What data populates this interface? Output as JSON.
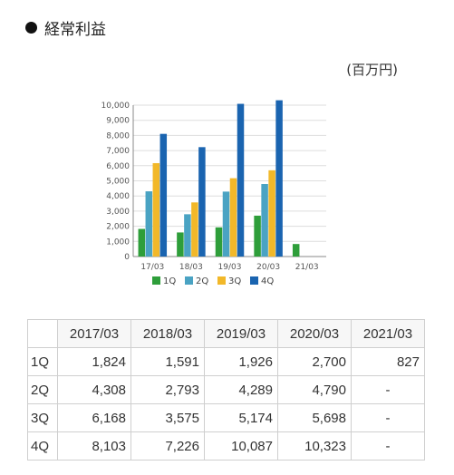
{
  "section": {
    "title": "経常利益"
  },
  "unit": "(百万円)",
  "chart_data": {
    "type": "bar",
    "categories": [
      "17/03",
      "18/03",
      "19/03",
      "20/03",
      "21/03"
    ],
    "series": [
      {
        "name": "1Q",
        "color": "#2e9e3a",
        "values": [
          1824,
          1591,
          1926,
          2700,
          827
        ]
      },
      {
        "name": "2Q",
        "color": "#4aa3c3",
        "values": [
          4308,
          2793,
          4289,
          4790,
          null
        ]
      },
      {
        "name": "3Q",
        "color": "#f2b829",
        "values": [
          6168,
          3575,
          5174,
          5698,
          null
        ]
      },
      {
        "name": "4Q",
        "color": "#1a64b0",
        "values": [
          8103,
          7226,
          10087,
          10323,
          null
        ]
      }
    ],
    "y_ticks": [
      "0",
      "1,000",
      "2,000",
      "3,000",
      "4,000",
      "5,000",
      "6,000",
      "7,000",
      "8,000",
      "9,000",
      "10,000"
    ],
    "ylim": [
      0,
      10000
    ],
    "grid": true,
    "legend_position": "bottom"
  },
  "table": {
    "headers": [
      "2017/03",
      "2018/03",
      "2019/03",
      "2020/03",
      "2021/03"
    ],
    "rows": [
      {
        "label": "1Q",
        "cells": [
          "1,824",
          "1,591",
          "1,926",
          "2,700",
          "827"
        ]
      },
      {
        "label": "2Q",
        "cells": [
          "4,308",
          "2,793",
          "4,289",
          "4,790",
          "-"
        ]
      },
      {
        "label": "3Q",
        "cells": [
          "6,168",
          "3,575",
          "5,174",
          "5,698",
          "-"
        ]
      },
      {
        "label": "4Q",
        "cells": [
          "8,103",
          "7,226",
          "10,087",
          "10,323",
          "-"
        ]
      }
    ]
  }
}
